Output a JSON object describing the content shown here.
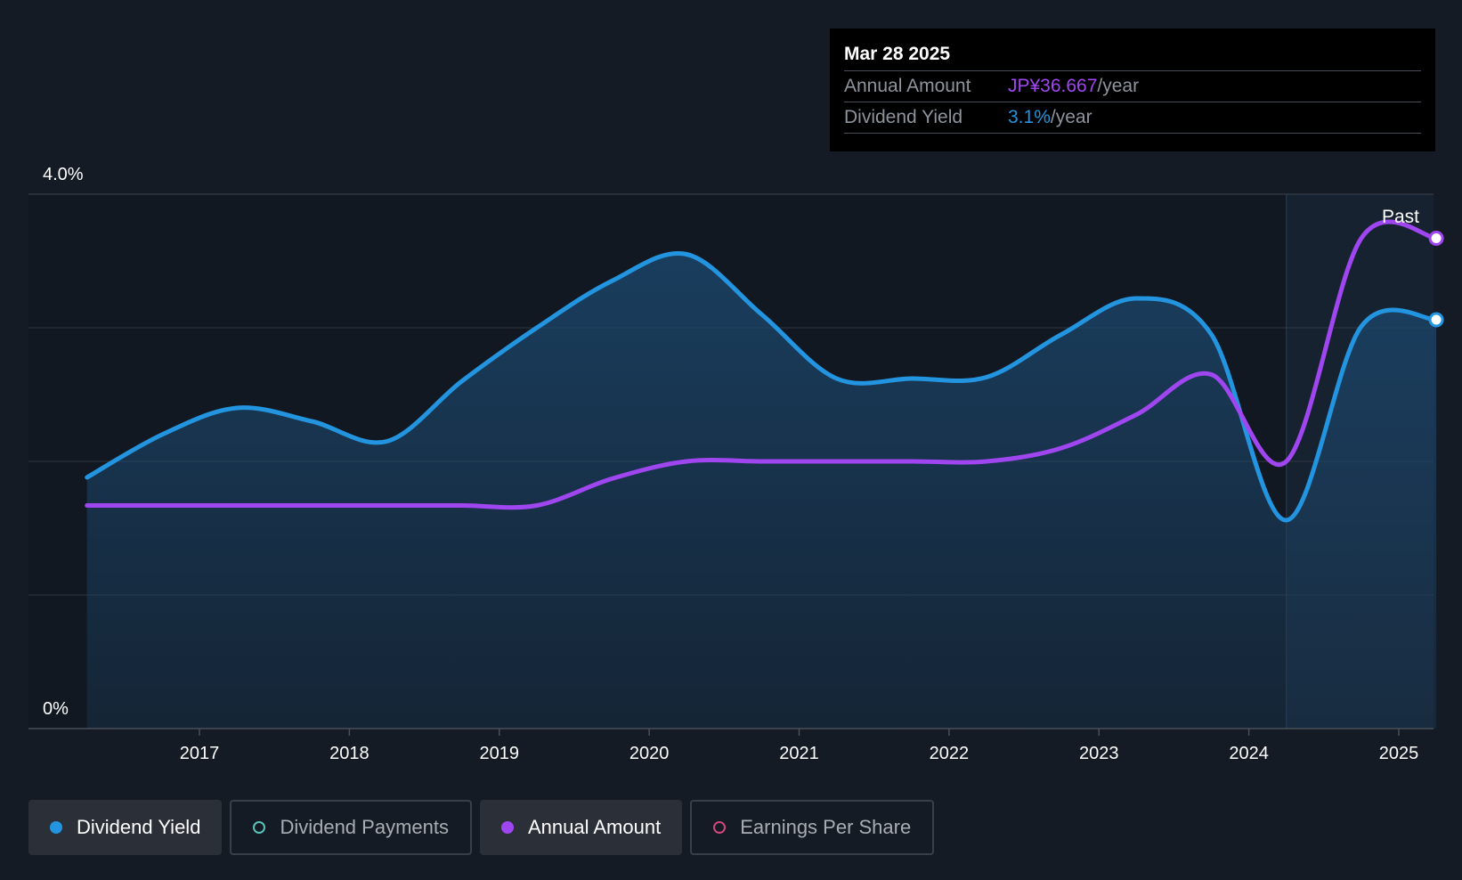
{
  "tooltip": {
    "date": "Mar 28 2025",
    "annual_amount_label": "Annual Amount",
    "annual_amount_value": "JP¥36.667",
    "annual_amount_unit": "/year",
    "yield_label": "Dividend Yield",
    "yield_value": "3.1%",
    "yield_unit": "/year"
  },
  "legend": [
    {
      "label": "Dividend Yield",
      "color": "#2394df",
      "active": true,
      "filled": true
    },
    {
      "label": "Dividend Payments",
      "color": "#56c4b8",
      "active": false,
      "filled": false
    },
    {
      "label": "Annual Amount",
      "color": "#a046f0",
      "active": true,
      "filled": true
    },
    {
      "label": "Earnings Per Share",
      "color": "#d2467e",
      "active": false,
      "filled": false
    }
  ],
  "chart_data": {
    "type": "line",
    "ylim": [
      0,
      4.0
    ],
    "y_tick_labels": [
      "0%",
      "4.0%"
    ],
    "x_ticks": [
      2017,
      2018,
      2019,
      2020,
      2021,
      2022,
      2023,
      2024,
      2025
    ],
    "x_range": [
      2016.25,
      2025.25
    ],
    "past_label": "Past",
    "past_start": 2024.25,
    "series": [
      {
        "name": "Dividend Yield",
        "color": "#2394df",
        "unit": "%",
        "points": [
          [
            2016.25,
            1.88
          ],
          [
            2016.75,
            2.2
          ],
          [
            2017.25,
            2.4
          ],
          [
            2017.75,
            2.3
          ],
          [
            2018.25,
            2.15
          ],
          [
            2018.75,
            2.6
          ],
          [
            2019.25,
            3.0
          ],
          [
            2019.75,
            3.35
          ],
          [
            2020.25,
            3.55
          ],
          [
            2020.75,
            3.1
          ],
          [
            2021.25,
            2.62
          ],
          [
            2021.75,
            2.62
          ],
          [
            2022.25,
            2.63
          ],
          [
            2022.75,
            2.95
          ],
          [
            2023.25,
            3.22
          ],
          [
            2023.75,
            2.95
          ],
          [
            2024.25,
            1.56
          ],
          [
            2024.75,
            3.01
          ],
          [
            2025.25,
            3.06
          ]
        ]
      },
      {
        "name": "Annual Amount",
        "color": "#a046f0",
        "unit": "JP¥",
        "points": [
          [
            2016.25,
            1.67
          ],
          [
            2016.75,
            1.67
          ],
          [
            2017.25,
            1.67
          ],
          [
            2017.75,
            1.67
          ],
          [
            2018.25,
            1.67
          ],
          [
            2018.75,
            1.67
          ],
          [
            2019.25,
            1.67
          ],
          [
            2019.75,
            1.87
          ],
          [
            2020.25,
            2.0
          ],
          [
            2020.75,
            2.0
          ],
          [
            2021.25,
            2.0
          ],
          [
            2021.75,
            2.0
          ],
          [
            2022.25,
            2.0
          ],
          [
            2022.75,
            2.1
          ],
          [
            2023.25,
            2.35
          ],
          [
            2023.75,
            2.65
          ],
          [
            2024.25,
            2.0
          ],
          [
            2024.75,
            3.67
          ],
          [
            2025.25,
            3.67
          ]
        ]
      }
    ]
  }
}
